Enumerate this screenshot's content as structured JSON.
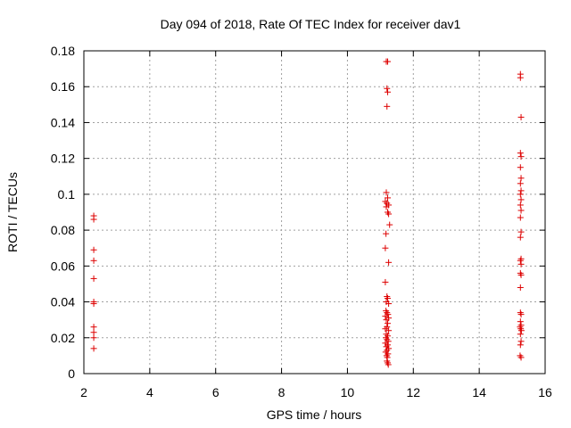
{
  "chart_data": {
    "type": "scatter",
    "title": "Day 094 of 2018, Rate Of TEC Index for receiver dav1",
    "xlabel": "GPS time / hours",
    "ylabel": "ROTI / TECUs",
    "xlim": [
      2,
      16
    ],
    "ylim": [
      0,
      0.18
    ],
    "x_ticks": [
      "2",
      "4",
      "6",
      "8",
      "10",
      "12",
      "14",
      "16"
    ],
    "y_ticks": [
      "0",
      "0.02",
      "0.04",
      "0.06",
      "0.08",
      "0.1",
      "0.12",
      "0.14",
      "0.16",
      "0.18"
    ],
    "grid": true,
    "marker": "plus",
    "color": "#dd0000",
    "series": [
      {
        "points": [
          [
            2.3,
            0.088
          ],
          [
            2.3,
            0.086
          ],
          [
            2.3,
            0.069
          ],
          [
            2.3,
            0.063
          ],
          [
            2.3,
            0.053
          ],
          [
            2.3,
            0.04
          ],
          [
            2.3,
            0.039
          ],
          [
            2.3,
            0.026
          ],
          [
            2.3,
            0.023
          ],
          [
            2.3,
            0.02
          ],
          [
            2.3,
            0.014
          ],
          [
            11.18,
            0.174
          ],
          [
            11.22,
            0.174
          ],
          [
            11.2,
            0.159
          ],
          [
            11.22,
            0.157
          ],
          [
            11.2,
            0.149
          ],
          [
            11.18,
            0.101
          ],
          [
            11.22,
            0.098
          ],
          [
            11.15,
            0.096
          ],
          [
            11.2,
            0.095
          ],
          [
            11.25,
            0.094
          ],
          [
            11.18,
            0.093
          ],
          [
            11.22,
            0.09
          ],
          [
            11.25,
            0.089
          ],
          [
            11.28,
            0.083
          ],
          [
            11.17,
            0.078
          ],
          [
            11.15,
            0.07
          ],
          [
            11.25,
            0.062
          ],
          [
            11.15,
            0.051
          ],
          [
            11.2,
            0.043
          ],
          [
            11.22,
            0.042
          ],
          [
            11.18,
            0.04
          ],
          [
            11.25,
            0.039
          ],
          [
            11.17,
            0.035
          ],
          [
            11.2,
            0.034
          ],
          [
            11.23,
            0.033
          ],
          [
            11.15,
            0.032
          ],
          [
            11.25,
            0.031
          ],
          [
            11.18,
            0.03
          ],
          [
            11.22,
            0.028
          ],
          [
            11.2,
            0.026
          ],
          [
            11.15,
            0.025
          ],
          [
            11.25,
            0.024
          ],
          [
            11.18,
            0.022
          ],
          [
            11.22,
            0.021
          ],
          [
            11.17,
            0.02
          ],
          [
            11.2,
            0.019
          ],
          [
            11.24,
            0.018
          ],
          [
            11.15,
            0.017
          ],
          [
            11.22,
            0.016
          ],
          [
            11.18,
            0.015
          ],
          [
            11.25,
            0.014
          ],
          [
            11.2,
            0.013
          ],
          [
            11.16,
            0.012
          ],
          [
            11.23,
            0.011
          ],
          [
            11.19,
            0.01
          ],
          [
            11.21,
            0.009
          ],
          [
            11.2,
            0.007
          ],
          [
            11.22,
            0.006
          ],
          [
            11.24,
            0.005
          ],
          [
            15.25,
            0.167
          ],
          [
            15.25,
            0.165
          ],
          [
            15.27,
            0.143
          ],
          [
            15.25,
            0.123
          ],
          [
            15.27,
            0.121
          ],
          [
            15.25,
            0.115
          ],
          [
            15.27,
            0.109
          ],
          [
            15.25,
            0.106
          ],
          [
            15.27,
            0.102
          ],
          [
            15.25,
            0.1
          ],
          [
            15.27,
            0.097
          ],
          [
            15.25,
            0.094
          ],
          [
            15.27,
            0.091
          ],
          [
            15.25,
            0.087
          ],
          [
            15.27,
            0.079
          ],
          [
            15.25,
            0.076
          ],
          [
            15.27,
            0.064
          ],
          [
            15.25,
            0.063
          ],
          [
            15.27,
            0.061
          ],
          [
            15.25,
            0.056
          ],
          [
            15.27,
            0.055
          ],
          [
            15.25,
            0.048
          ],
          [
            15.25,
            0.034
          ],
          [
            15.27,
            0.033
          ],
          [
            15.25,
            0.029
          ],
          [
            15.27,
            0.027
          ],
          [
            15.24,
            0.026
          ],
          [
            15.26,
            0.025
          ],
          [
            15.28,
            0.024
          ],
          [
            15.25,
            0.022
          ],
          [
            15.27,
            0.018
          ],
          [
            15.25,
            0.016
          ],
          [
            15.24,
            0.01
          ],
          [
            15.27,
            0.009
          ]
        ]
      }
    ]
  }
}
